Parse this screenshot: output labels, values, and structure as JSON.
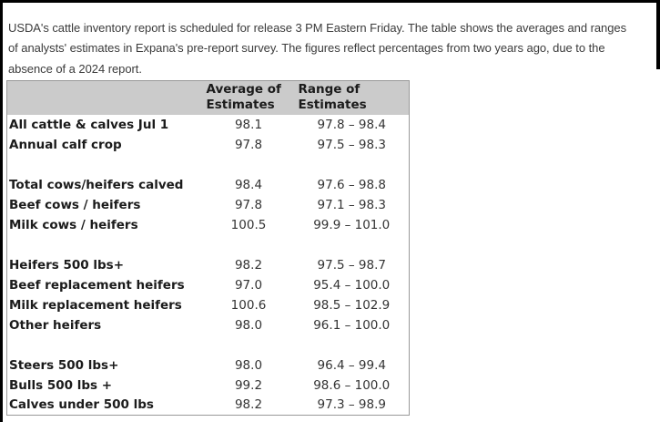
{
  "intro": {
    "lines": [
      "USDA's cattle inventory report is scheduled for release 3 PM Eastern Friday. The table shows the averages and ranges",
      "of analysts' estimates in Expana's pre-report survey. The figures reflect percentages from two years ago, due to the",
      "absence of a 2024 report."
    ]
  },
  "table": {
    "header": {
      "label_col": "",
      "average": "Average of Estimates",
      "range": "Range of Estimates"
    },
    "rows": [
      {
        "label": "All cattle & calves Jul 1",
        "avg": "98.1",
        "range": "97.8 – 98.4"
      },
      {
        "label": "Annual calf crop",
        "avg": "97.8",
        "range": "97.5 – 98.3"
      },
      {
        "label": "",
        "avg": "",
        "range": ""
      },
      {
        "label": "Total cows/heifers calved",
        "avg": "98.4",
        "range": "97.6 – 98.8"
      },
      {
        "label": "Beef cows / heifers",
        "avg": "97.8",
        "range": "97.1 – 98.3"
      },
      {
        "label": "Milk cows / heifers",
        "avg": "100.5",
        "range": "99.9 – 101.0"
      },
      {
        "label": "",
        "avg": "",
        "range": ""
      },
      {
        "label": "Heifers 500 lbs+",
        "avg": "98.2",
        "range": "97.5 – 98.7"
      },
      {
        "label": "Beef replacement heifers",
        "avg": "97.0",
        "range": "95.4 – 100.0"
      },
      {
        "label": "Milk replacement heifers",
        "avg": "100.6",
        "range": "98.5 – 102.9"
      },
      {
        "label": "Other heifers",
        "avg": "98.0",
        "range": "96.1 – 100.0"
      },
      {
        "label": "",
        "avg": "",
        "range": ""
      },
      {
        "label": "Steers 500 lbs+",
        "avg": "98.0",
        "range": "96.4 – 99.4"
      },
      {
        "label": "Bulls 500 lbs +",
        "avg": "99.2",
        "range": "98.6 – 100.0"
      },
      {
        "label": "Calves under 500 lbs",
        "avg": "98.2",
        "range": "97.3 – 98.9"
      }
    ]
  },
  "colors": {
    "frame": "#000000",
    "header-bg": "#cbcbcb",
    "table-border": "#999999",
    "text": "#3b3b3b",
    "label": "#1b1b1b",
    "value": "#333333"
  }
}
